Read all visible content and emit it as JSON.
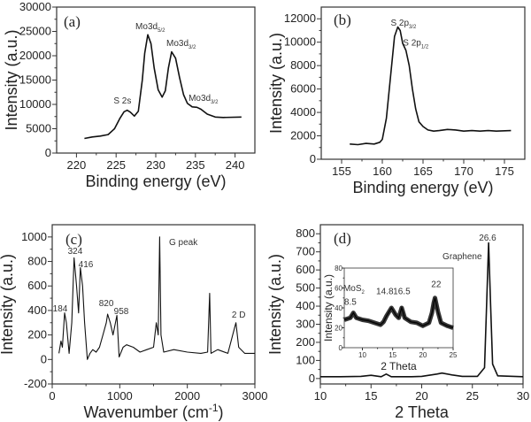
{
  "chart_data": [
    {
      "panel": "(a)",
      "type": "line",
      "xlabel": "Binding energy (eV)",
      "ylabel": "Intensity (a.u.)",
      "xlim": [
        217.5,
        242.5
      ],
      "ylim": [
        0,
        30000
      ],
      "xticks": [
        220,
        225,
        230,
        235,
        240
      ],
      "yticks": [
        0,
        5000,
        10000,
        15000,
        20000,
        25000,
        30000
      ],
      "x": [
        221,
        222,
        223,
        224,
        224.8,
        225.5,
        226,
        226.4,
        226.8,
        227.3,
        227.8,
        228.3,
        228.6,
        229,
        229.4,
        229.8,
        230.3,
        230.8,
        231.2,
        231.6,
        232,
        232.5,
        233,
        233.5,
        234,
        234.6,
        235.2,
        235.7,
        236.5,
        237.5,
        238.5,
        240.8
      ],
      "y": [
        3000,
        3300,
        3500,
        3800,
        5000,
        7200,
        8500,
        8800,
        8400,
        7600,
        8600,
        15000,
        20500,
        24300,
        22500,
        17500,
        13000,
        11500,
        12800,
        17500,
        20800,
        19500,
        15500,
        12000,
        10200,
        9500,
        9400,
        9000,
        8000,
        7400,
        7300,
        7400
      ],
      "annotations": [
        {
          "text": "S 2s",
          "sub": "",
          "x": 225.8,
          "y": 10200
        },
        {
          "text": "Mo3d",
          "sub": "5/2",
          "x": 229.3,
          "y": 25450
        },
        {
          "text": "Mo3d",
          "sub": "3/2",
          "x": 233.2,
          "y": 22000
        },
        {
          "text": "Mo3d",
          "sub": "3/2",
          "x": 236,
          "y": 10700
        }
      ]
    },
    {
      "panel": "(b)",
      "type": "line",
      "xlabel": "Binding energy (eV)",
      "ylabel": "Intensity (a.u.)",
      "xlim": [
        152.5,
        177.5
      ],
      "ylim": [
        0,
        13000
      ],
      "xticks": [
        155,
        160,
        165,
        170,
        175
      ],
      "yticks": [
        0,
        2000,
        4000,
        6000,
        8000,
        10000,
        12000
      ],
      "x": [
        156,
        157,
        158,
        159,
        159.7,
        160,
        160.5,
        161,
        161.5,
        161.9,
        162.2,
        162.5,
        162.9,
        163.3,
        163.7,
        164.1,
        164.5,
        165,
        165.6,
        166.3,
        167,
        168,
        169,
        170,
        171,
        172,
        173,
        174,
        175.8
      ],
      "y": [
        1300,
        1250,
        1350,
        1300,
        1450,
        1700,
        3500,
        7000,
        10500,
        11300,
        11000,
        9900,
        9300,
        8000,
        6000,
        4300,
        3200,
        2800,
        2500,
        2400,
        2450,
        2550,
        2500,
        2400,
        2450,
        2400,
        2450,
        2400,
        2450
      ],
      "annotations": [
        {
          "text": "S 2p",
          "sub": "3/2",
          "x": 162.6,
          "y": 11400
        },
        {
          "text": "S 2p",
          "sub": "1/2",
          "x": 164.1,
          "y": 9700
        }
      ]
    },
    {
      "panel": "(c)",
      "type": "line",
      "xlabel": "Wavenumber (cm",
      "xlabel_sup": "-1",
      "xlabel_end": ")",
      "ylabel": "Intensity (a.u.)",
      "xlim": [
        0,
        3000
      ],
      "ylim": [
        -200,
        1100
      ],
      "xticks": [
        0,
        1000,
        2000,
        3000
      ],
      "yticks": [
        -200,
        0,
        200,
        400,
        600,
        800,
        1000
      ],
      "x": [
        100,
        130,
        150,
        184,
        210,
        250,
        290,
        324,
        360,
        390,
        416,
        450,
        480,
        520,
        560,
        600,
        650,
        700,
        750,
        800,
        820,
        860,
        900,
        958,
        990,
        1050,
        1100,
        1200,
        1300,
        1400,
        1500,
        1540,
        1570,
        1590,
        1610,
        1650,
        1800,
        2000,
        2200,
        2300,
        2330,
        2350,
        2450,
        2600,
        2700,
        2720,
        2760,
        2850,
        3000
      ],
      "y": [
        50,
        150,
        100,
        380,
        300,
        50,
        300,
        830,
        600,
        380,
        750,
        600,
        300,
        0,
        50,
        80,
        60,
        100,
        200,
        300,
        370,
        300,
        200,
        360,
        20,
        100,
        120,
        100,
        60,
        80,
        100,
        300,
        200,
        1000,
        200,
        60,
        80,
        60,
        50,
        60,
        540,
        50,
        80,
        50,
        260,
        300,
        100,
        50,
        50
      ],
      "annotations": [
        {
          "text": "184",
          "sub": "",
          "x": 118,
          "y": 393
        },
        {
          "text": "324",
          "sub": "",
          "x": 340,
          "y": 862
        },
        {
          "text": "416",
          "sub": "",
          "x": 498,
          "y": 754
        },
        {
          "text": "820",
          "sub": "",
          "x": 800,
          "y": 436
        },
        {
          "text": "958",
          "sub": "",
          "x": 1022,
          "y": 371
        },
        {
          "text": "G peak",
          "sub": "",
          "x": 1940,
          "y": 935
        },
        {
          "text": "2 D",
          "sub": "",
          "x": 2760,
          "y": 342
        }
      ]
    },
    {
      "panel": "(d)",
      "type": "line",
      "xlabel": "2 Theta",
      "ylabel": "Intensity (a.u.)",
      "xlim": [
        10,
        30
      ],
      "ylim": [
        -30,
        850
      ],
      "xticks": [
        10,
        15,
        20,
        25,
        30
      ],
      "yticks": [
        0,
        100,
        200,
        300,
        400,
        500,
        600,
        700,
        800
      ],
      "x": [
        10,
        12,
        14,
        15,
        16,
        16.5,
        17,
        19,
        20,
        21.5,
        22,
        23,
        24,
        25.5,
        26.2,
        26.4,
        26.6,
        26.8,
        27,
        27.5,
        30
      ],
      "y": [
        10,
        10,
        12,
        18,
        10,
        25,
        10,
        10,
        12,
        25,
        30,
        20,
        12,
        12,
        60,
        400,
        750,
        400,
        80,
        15,
        10
      ],
      "annotations": [
        {
          "text": "26.6",
          "sub": "",
          "x": 26.5,
          "y": 762
        },
        {
          "text": "Graphene",
          "sub": "",
          "x": 24.0,
          "y": 660
        }
      ],
      "inset": {
        "xlabel": "2 Theta",
        "ylabel": "Intensity (a.u.)",
        "xlim": [
          7,
          25
        ],
        "ylim": [
          0,
          80
        ],
        "xticks": [
          10,
          15,
          20,
          25
        ],
        "yticks": [
          0,
          20,
          40,
          60,
          80
        ],
        "x": [
          7,
          8,
          8.5,
          9,
          10,
          11,
          12,
          13,
          13.5,
          14,
          14.8,
          15.5,
          16,
          16.5,
          17,
          18,
          19,
          20,
          21,
          21.5,
          21.8,
          22,
          22.5,
          23,
          24,
          25
        ],
        "y": [
          28,
          30,
          35,
          30,
          28,
          27,
          25,
          23,
          26,
          32,
          40,
          33,
          30,
          40,
          30,
          26,
          25,
          22,
          25,
          35,
          45,
          50,
          36,
          25,
          22,
          20
        ],
        "annotations": [
          {
            "text": "MoS",
            "sub": "2",
            "x": 8.6,
            "y": 57
          },
          {
            "text": "8.5",
            "sub": "",
            "x": 8.0,
            "y": 43
          },
          {
            "text": "14.8",
            "sub": "",
            "x": 13.7,
            "y": 54
          },
          {
            "text": "16.5",
            "sub": "",
            "x": 16.5,
            "y": 54
          },
          {
            "text": "22",
            "sub": "",
            "x": 22.2,
            "y": 61
          }
        ]
      }
    }
  ]
}
